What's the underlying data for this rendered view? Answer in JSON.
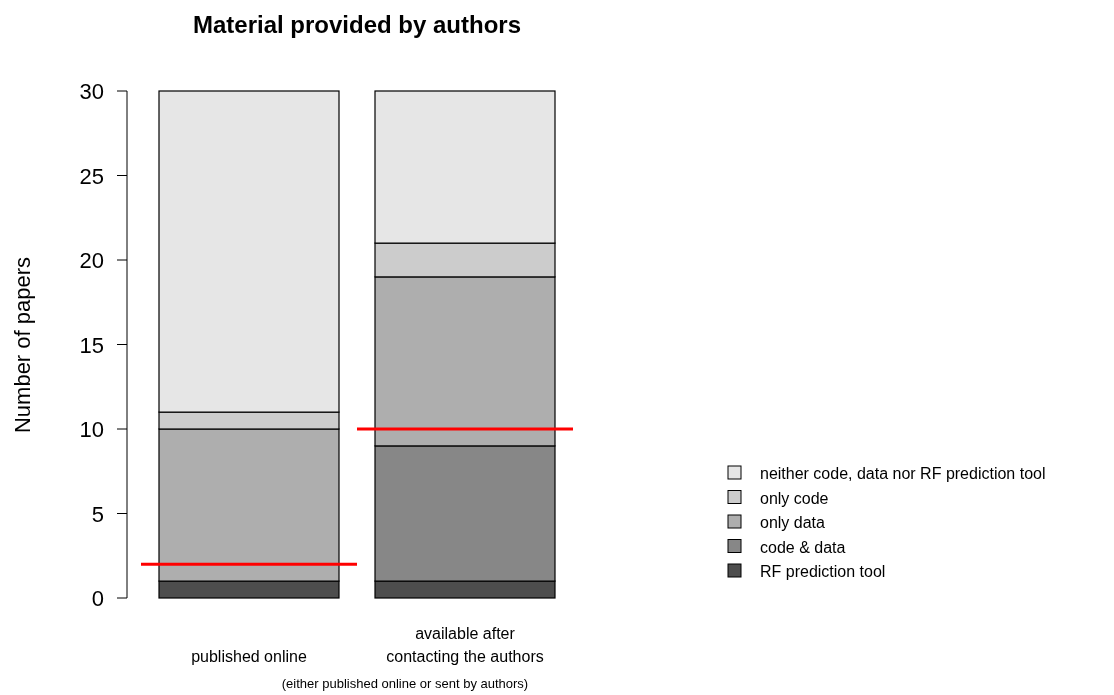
{
  "chart_data": {
    "type": "bar",
    "title": "Material provided by authors",
    "ylabel": "Number of papers",
    "categories": [
      "published online",
      "available after\ncontacting the authors"
    ],
    "stacked": true,
    "series": [
      {
        "name": "RF prediction tool",
        "color": "#4d4d4d",
        "values": [
          1,
          1
        ]
      },
      {
        "name": "code & data",
        "color": "#878787",
        "values": [
          0,
          8
        ]
      },
      {
        "name": "only data",
        "color": "#aeaeae",
        "values": [
          9,
          10
        ]
      },
      {
        "name": "only code",
        "color": "#cccccc",
        "values": [
          1,
          2
        ]
      },
      {
        "name": "neither code, data nor RF prediction tool",
        "color": "#e6e6e6",
        "values": [
          19,
          9
        ]
      }
    ],
    "ylim": [
      0,
      30
    ],
    "yticks": [
      0,
      5,
      10,
      15,
      20,
      25,
      30
    ],
    "ref_lines": [
      {
        "axis": "y",
        "value": 2,
        "color": "#ff0000"
      },
      {
        "axis": "y",
        "value": 10,
        "color": "#ff0000"
      }
    ],
    "annotations": [
      "(either published online or sent by authors)"
    ],
    "grid": false,
    "legend": "right"
  }
}
